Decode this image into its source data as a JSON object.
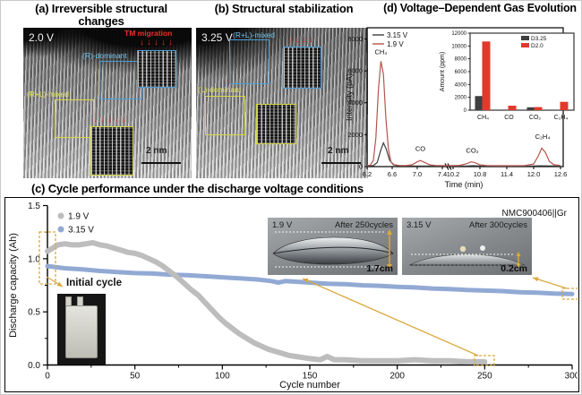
{
  "figure": {
    "colors": {
      "annotation_gold": "#d9a93e",
      "annotation_blue": "#4d9fd6",
      "annotation_yellow": "#d6d645",
      "red_arrow": "#e53022",
      "series_gray": "#bdbdbd",
      "series_blue": "#92a9d4",
      "curve_dark": "#3f3f3f",
      "curve_red": "#b5544b",
      "bar_red": "#e03a2c"
    },
    "panel_a": {
      "title_line1": "(a) Irreversible structural",
      "title_line2": "changes",
      "voltage": "2.0 V",
      "tm_label": "TM migration",
      "region_blue": "(R)-dominant",
      "region_yellow": "(R+L)-mixed",
      "scale_bar": "2 nm",
      "arrows_top": "↓↓↓↓↓",
      "arrows_bottom": "↓↓↓↓↓"
    },
    "panel_b": {
      "title": "(b) Structural stabilization",
      "voltage": "3.25 V",
      "region_blue": "(R+L)-mixed",
      "region_yellow": "(L)-dominant",
      "scale_bar": "2 nm",
      "arrows": "↓↓↓↓"
    },
    "panel_d": {
      "title": "(d) Voltage–Dependent Gas Evolution"
    },
    "panel_c": {
      "title": "(c) Cycle performance under the discharge voltage conditions",
      "cell_label": "NMC900406||Gr",
      "initial_cycle_label": "Initial cycle",
      "photo1": {
        "voltage": "1.9 V",
        "cycles": "After 250cycles",
        "thickness": "1.7cm"
      },
      "photo2": {
        "voltage": "3.15 V",
        "cycles": "After 300cycles",
        "thickness": "0.2cm"
      }
    }
  },
  "chart_data": [
    {
      "type": "line",
      "title": "(d) Voltage–Dependent Gas Evolution",
      "xlabel": "Time (min)",
      "ylabel": "Intensity (pA)",
      "ylim": [
        0,
        8700
      ],
      "yticks": [
        0,
        2000,
        4000,
        6000,
        8000
      ],
      "xticks": [
        6.2,
        6.6,
        7.0,
        7.4,
        10.2,
        10.8,
        11.4,
        12.0,
        12.6
      ],
      "x_break": [
        7.4,
        10.2
      ],
      "grid": false,
      "legend_position": "top-left",
      "series": [
        {
          "name": "3.15 V",
          "color": "#3f3f3f",
          "points": [
            [
              6.2,
              35
            ],
            [
              6.3,
              60
            ],
            [
              6.36,
              250
            ],
            [
              6.42,
              1050
            ],
            [
              6.46,
              1480
            ],
            [
              6.5,
              1150
            ],
            [
              6.56,
              400
            ],
            [
              6.62,
              120
            ],
            [
              6.7,
              50
            ],
            [
              6.85,
              40
            ],
            [
              7.1,
              38
            ],
            [
              7.25,
              36
            ],
            [
              7.4,
              35
            ],
            [
              10.2,
              35
            ],
            [
              10.5,
              40
            ],
            [
              10.65,
              55
            ],
            [
              10.8,
              40
            ],
            [
              11.1,
              35
            ],
            [
              11.5,
              35
            ],
            [
              11.9,
              35
            ],
            [
              12.15,
              50
            ],
            [
              12.3,
              45
            ],
            [
              12.6,
              35
            ]
          ]
        },
        {
          "name": "1.9 V",
          "color": "#b5544b",
          "points": [
            [
              6.2,
              70
            ],
            [
              6.25,
              90
            ],
            [
              6.3,
              400
            ],
            [
              6.34,
              1800
            ],
            [
              6.38,
              4800
            ],
            [
              6.42,
              6600
            ],
            [
              6.46,
              5800
            ],
            [
              6.5,
              3000
            ],
            [
              6.54,
              1100
            ],
            [
              6.58,
              300
            ],
            [
              6.63,
              120
            ],
            [
              6.72,
              70
            ],
            [
              6.82,
              60
            ],
            [
              6.92,
              120
            ],
            [
              7.0,
              300
            ],
            [
              7.05,
              380
            ],
            [
              7.12,
              260
            ],
            [
              7.2,
              110
            ],
            [
              7.3,
              70
            ],
            [
              7.4,
              60
            ],
            [
              10.2,
              60
            ],
            [
              10.35,
              80
            ],
            [
              10.5,
              180
            ],
            [
              10.6,
              300
            ],
            [
              10.68,
              260
            ],
            [
              10.8,
              110
            ],
            [
              10.95,
              65
            ],
            [
              11.2,
              55
            ],
            [
              11.5,
              55
            ],
            [
              11.8,
              70
            ],
            [
              12.0,
              160
            ],
            [
              12.1,
              650
            ],
            [
              12.18,
              1150
            ],
            [
              12.26,
              900
            ],
            [
              12.35,
              330
            ],
            [
              12.45,
              120
            ],
            [
              12.6,
              70
            ]
          ]
        }
      ],
      "peak_annotations": [
        {
          "label": "CH₄",
          "t": 6.42,
          "y": 7050
        },
        {
          "label": "CO",
          "t": 7.05,
          "y": 980
        },
        {
          "label": "CO₂",
          "t": 10.63,
          "y": 880
        },
        {
          "label": "C₂H₄",
          "t": 12.2,
          "y": 1750
        }
      ]
    },
    {
      "type": "bar",
      "ylabel": "Amount (ppm)",
      "ylim": [
        0,
        12000
      ],
      "yticks": [
        0,
        2000,
        4000,
        6000,
        8000,
        10000,
        12000
      ],
      "categories": [
        "CH₄",
        "CO",
        "CO₂",
        "C₂H₄"
      ],
      "legend_position": "top-right",
      "series": [
        {
          "name": "D3.25",
          "color": "#3f3f3f",
          "values": [
            2200,
            80,
            450,
            60
          ]
        },
        {
          "name": "D2.0",
          "color": "#e03a2c",
          "values": [
            10700,
            700,
            480,
            1300
          ]
        }
      ]
    },
    {
      "type": "scatter",
      "xlabel": "Cycle number",
      "ylabel": "Discharge capacity (Ah)",
      "xlim": [
        0,
        300
      ],
      "ylim": [
        0,
        1.5
      ],
      "xticks": [
        0,
        50,
        100,
        150,
        200,
        250,
        300
      ],
      "yticks": [
        0.0,
        0.5,
        1.0,
        1.5
      ],
      "annotation": "NMC900406||Gr",
      "legend_position": "top-left",
      "series": [
        {
          "name": "1.9 V",
          "color": "#bdbdbd",
          "points": [
            [
              0,
              1.07
            ],
            [
              3,
              1.1
            ],
            [
              6,
              1.13
            ],
            [
              10,
              1.14
            ],
            [
              14,
              1.13
            ],
            [
              18,
              1.13
            ],
            [
              22,
              1.14
            ],
            [
              26,
              1.15
            ],
            [
              30,
              1.13
            ],
            [
              34,
              1.12
            ],
            [
              38,
              1.1
            ],
            [
              42,
              1.08
            ],
            [
              46,
              1.06
            ],
            [
              50,
              1.05
            ],
            [
              54,
              1.03
            ],
            [
              58,
              1.0
            ],
            [
              62,
              0.97
            ],
            [
              66,
              0.93
            ],
            [
              70,
              0.88
            ],
            [
              74,
              0.83
            ],
            [
              78,
              0.77
            ],
            [
              82,
              0.71
            ],
            [
              86,
              0.66
            ],
            [
              90,
              0.59
            ],
            [
              94,
              0.52
            ],
            [
              98,
              0.45
            ],
            [
              102,
              0.39
            ],
            [
              106,
              0.34
            ],
            [
              110,
              0.29
            ],
            [
              114,
              0.25
            ],
            [
              118,
              0.21
            ],
            [
              122,
              0.18
            ],
            [
              126,
              0.15
            ],
            [
              130,
              0.13
            ],
            [
              134,
              0.11
            ],
            [
              138,
              0.09
            ],
            [
              142,
              0.08
            ],
            [
              146,
              0.07
            ],
            [
              150,
              0.06
            ],
            [
              156,
              0.05
            ],
            [
              160,
              0.08
            ],
            [
              164,
              0.05
            ],
            [
              170,
              0.05
            ],
            [
              180,
              0.04
            ],
            [
              190,
              0.04
            ],
            [
              200,
              0.04
            ],
            [
              210,
              0.05
            ],
            [
              220,
              0.04
            ],
            [
              230,
              0.04
            ],
            [
              240,
              0.03
            ],
            [
              250,
              0.03
            ]
          ]
        },
        {
          "name": "3.15 V",
          "color": "#92a9d4",
          "points": [
            [
              0,
              0.93
            ],
            [
              10,
              0.91
            ],
            [
              20,
              0.9
            ],
            [
              30,
              0.885
            ],
            [
              40,
              0.875
            ],
            [
              50,
              0.865
            ],
            [
              60,
              0.86
            ],
            [
              70,
              0.85
            ],
            [
              80,
              0.845
            ],
            [
              90,
              0.835
            ],
            [
              100,
              0.825
            ],
            [
              110,
              0.815
            ],
            [
              120,
              0.805
            ],
            [
              128,
              0.79
            ],
            [
              132,
              0.775
            ],
            [
              136,
              0.79
            ],
            [
              140,
              0.785
            ],
            [
              150,
              0.775
            ],
            [
              160,
              0.765
            ],
            [
              170,
              0.76
            ],
            [
              180,
              0.75
            ],
            [
              190,
              0.745
            ],
            [
              200,
              0.735
            ],
            [
              210,
              0.73
            ],
            [
              220,
              0.72
            ],
            [
              230,
              0.715
            ],
            [
              240,
              0.705
            ],
            [
              250,
              0.7
            ],
            [
              260,
              0.695
            ],
            [
              270,
              0.685
            ],
            [
              280,
              0.68
            ],
            [
              290,
              0.672
            ],
            [
              300,
              0.668
            ]
          ]
        }
      ]
    }
  ]
}
